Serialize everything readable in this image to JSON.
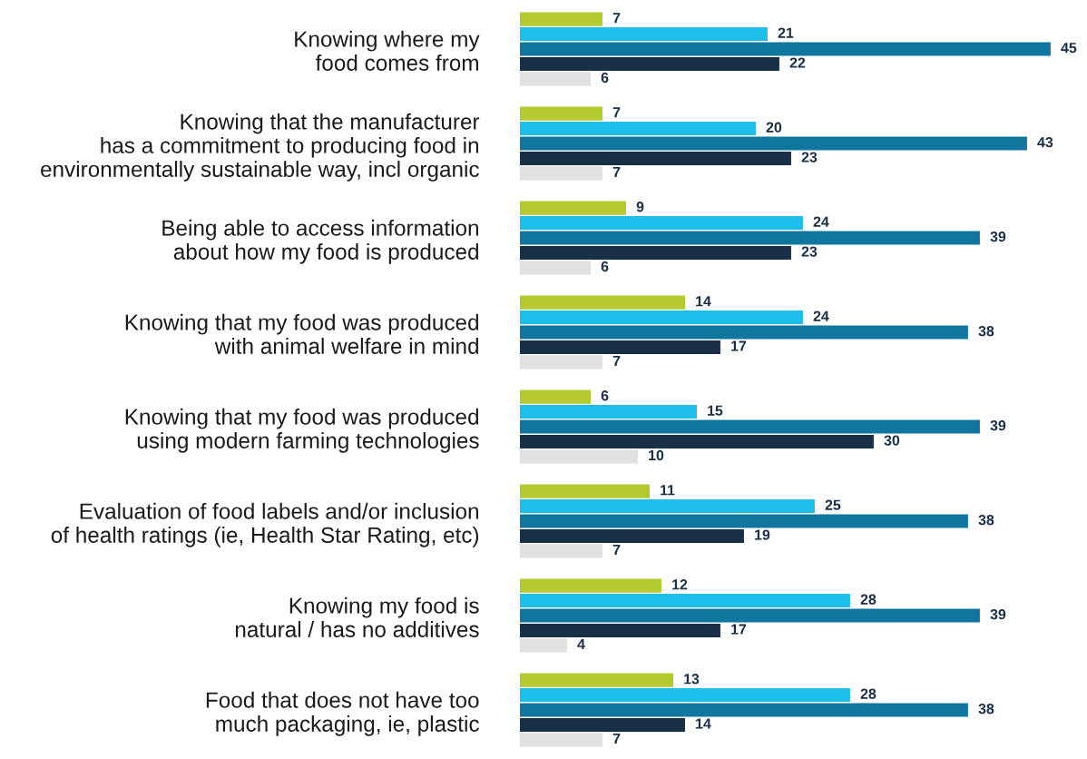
{
  "chart_data": {
    "type": "bar",
    "orientation": "horizontal",
    "data_labels": true,
    "grid": false,
    "legend": false,
    "tick_labels": "y",
    "categories": [
      "Knowing where my\nfood comes from",
      "Knowing that the manufacturer\nhas a commitment to producing food in\nenvironmentally sustainable way, incl organic",
      "Being able to access information\nabout how my food is produced",
      "Knowing that my food was produced\nwith animal welfare in mind",
      "Knowing that my food was produced\nusing modern farming technologies",
      "Evaluation of food labels and/or inclusion\nof health ratings (ie, Health Star Rating, etc)",
      "Knowing my food is\nnatural / has no additives",
      "Food that does not have too\nmuch packaging, ie, plastic"
    ],
    "series": [
      {
        "color": "#b3c92d",
        "values": [
          7,
          7,
          9,
          14,
          6,
          11,
          12,
          13
        ]
      },
      {
        "color": "#1fbdea",
        "values": [
          21,
          20,
          24,
          24,
          15,
          25,
          28,
          28
        ]
      },
      {
        "color": "#11769e",
        "values": [
          45,
          43,
          39,
          38,
          39,
          38,
          39,
          38
        ]
      },
      {
        "color": "#1a2f48",
        "values": [
          22,
          23,
          23,
          17,
          30,
          19,
          17,
          14
        ]
      },
      {
        "color": "#e0e1e3",
        "values": [
          6,
          7,
          6,
          7,
          10,
          7,
          4,
          7
        ]
      }
    ]
  }
}
